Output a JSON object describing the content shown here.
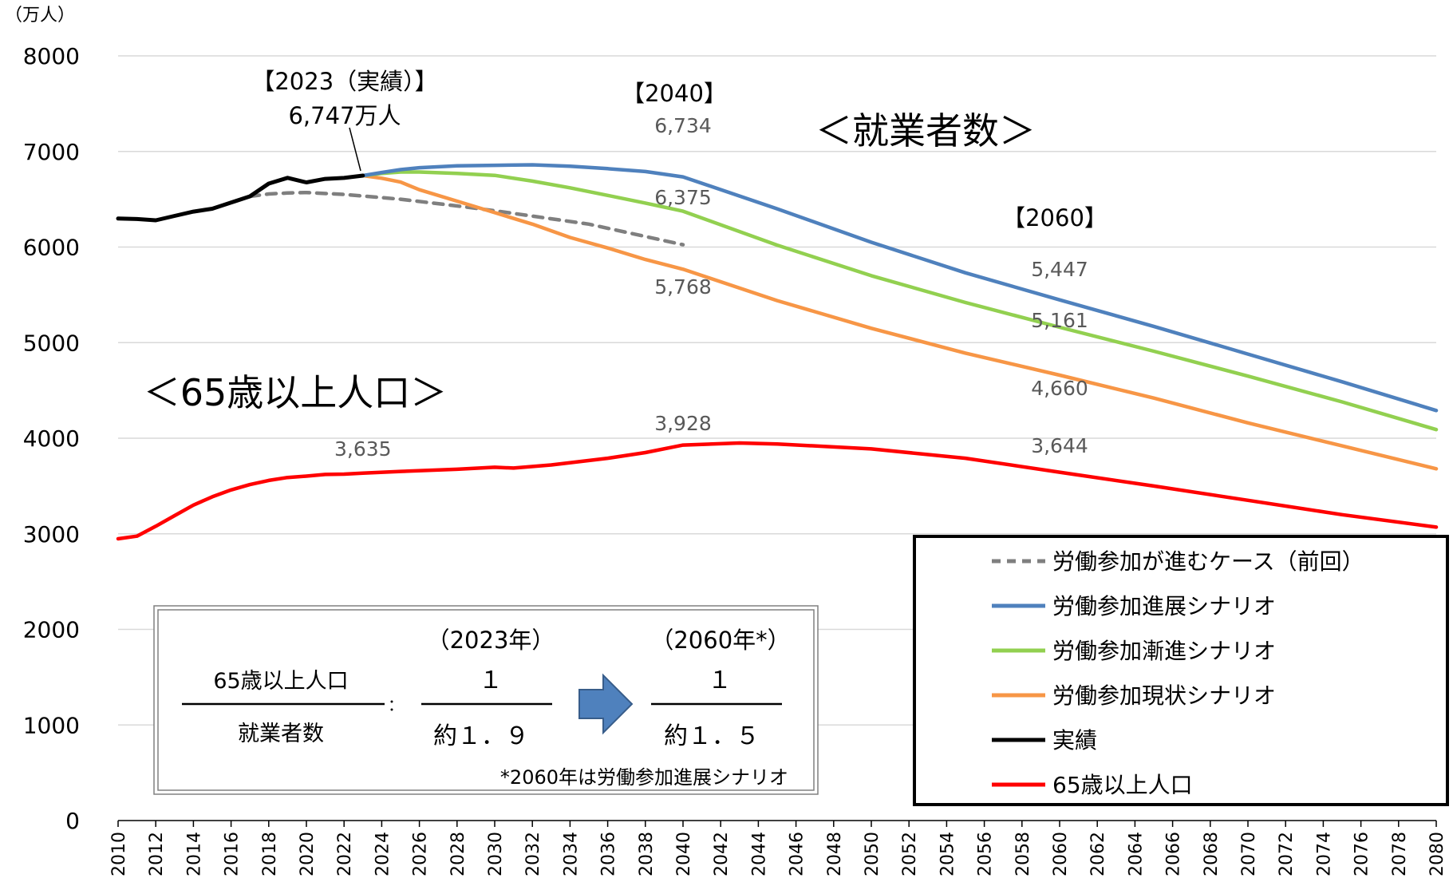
{
  "chart_data": {
    "type": "line",
    "unit_label": "（万人）",
    "ylim": [
      0,
      8000
    ],
    "yticks": [
      0,
      1000,
      2000,
      3000,
      4000,
      5000,
      6000,
      7000,
      8000
    ],
    "xlim": [
      2010,
      2080
    ],
    "xticks": [
      2010,
      2012,
      2014,
      2016,
      2018,
      2020,
      2022,
      2024,
      2026,
      2028,
      2030,
      2032,
      2034,
      2036,
      2038,
      2040,
      2042,
      2044,
      2046,
      2048,
      2050,
      2052,
      2054,
      2056,
      2058,
      2060,
      2062,
      2064,
      2066,
      2068,
      2070,
      2072,
      2074,
      2076,
      2078,
      2080
    ],
    "grid": true,
    "legend_position": "bottom-right",
    "series": [
      {
        "name": "労働参加が進むケース（前回）",
        "color": "#7f7f7f",
        "dash": true,
        "x": [
          2017,
          2018,
          2019,
          2020,
          2022,
          2025,
          2028,
          2030,
          2035,
          2040
        ],
        "y": [
          6530,
          6555,
          6565,
          6570,
          6550,
          6500,
          6430,
          6380,
          6240,
          6024
        ]
      },
      {
        "name": "労働参加進展シナリオ",
        "color": "#4f81bd",
        "dash": false,
        "x": [
          2023,
          2024,
          2025,
          2026,
          2028,
          2030,
          2032,
          2034,
          2036,
          2038,
          2040,
          2045,
          2050,
          2055,
          2060,
          2065,
          2070,
          2075,
          2080
        ],
        "y": [
          6747,
          6780,
          6810,
          6830,
          6850,
          6855,
          6860,
          6845,
          6820,
          6790,
          6734,
          6400,
          6050,
          5730,
          5447,
          5170,
          4880,
          4590,
          4290
        ]
      },
      {
        "name": "労働参加漸進シナリオ",
        "color": "#92d050",
        "dash": false,
        "x": [
          2023,
          2024,
          2025,
          2026,
          2028,
          2030,
          2032,
          2034,
          2036,
          2038,
          2040,
          2045,
          2050,
          2055,
          2060,
          2065,
          2070,
          2075,
          2080
        ],
        "y": [
          6747,
          6770,
          6785,
          6785,
          6770,
          6750,
          6690,
          6620,
          6540,
          6460,
          6375,
          6020,
          5700,
          5420,
          5161,
          4910,
          4650,
          4380,
          4090
        ]
      },
      {
        "name": "労働参加現状シナリオ",
        "color": "#f79646",
        "dash": false,
        "x": [
          2023,
          2024,
          2025,
          2026,
          2028,
          2030,
          2032,
          2034,
          2036,
          2038,
          2040,
          2045,
          2050,
          2055,
          2060,
          2065,
          2070,
          2075,
          2080
        ],
        "y": [
          6747,
          6720,
          6680,
          6600,
          6480,
          6360,
          6240,
          6100,
          5990,
          5870,
          5768,
          5440,
          5150,
          4890,
          4660,
          4420,
          4160,
          3920,
          3680
        ]
      },
      {
        "name": "実績",
        "color": "#000000",
        "dash": false,
        "x": [
          2010,
          2011,
          2012,
          2013,
          2014,
          2015,
          2016,
          2017,
          2018,
          2019,
          2020,
          2021,
          2022,
          2023
        ],
        "y": [
          6298,
          6293,
          6280,
          6326,
          6371,
          6401,
          6465,
          6530,
          6664,
          6724,
          6676,
          6713,
          6723,
          6747
        ]
      },
      {
        "name": "65歳以上人口",
        "color": "#ff0000",
        "dash": false,
        "x": [
          2010,
          2011,
          2012,
          2013,
          2014,
          2015,
          2016,
          2017,
          2018,
          2019,
          2020,
          2021,
          2022,
          2023,
          2025,
          2028,
          2030,
          2031,
          2033,
          2036,
          2038,
          2040,
          2043,
          2045,
          2050,
          2055,
          2060,
          2065,
          2070,
          2075,
          2080
        ],
        "y": [
          2948,
          2975,
          3079,
          3190,
          3300,
          3387,
          3459,
          3515,
          3558,
          3589,
          3603,
          3621,
          3624,
          3635,
          3653,
          3675,
          3696,
          3688,
          3720,
          3790,
          3850,
          3928,
          3950,
          3940,
          3888,
          3790,
          3644,
          3500,
          3350,
          3200,
          3070
        ]
      }
    ],
    "data_labels": [
      {
        "text": "6,734",
        "x": 2040
      },
      {
        "text": "6,375",
        "x": 2040
      },
      {
        "text": "5,768",
        "x": 2040
      },
      {
        "text": "3,928",
        "x": 2040
      },
      {
        "text": "5,447",
        "x": 2060
      },
      {
        "text": "5,161",
        "x": 2060
      },
      {
        "text": "4,660",
        "x": 2060
      },
      {
        "text": "3,644",
        "x": 2060
      },
      {
        "text": "3,635",
        "x": 2023
      }
    ],
    "annotations": {
      "actual_year": "【2023（実績）】",
      "actual_value": "6,747万人",
      "year_2040": "【2040】",
      "year_2060": "【2060】",
      "employed_title": "＜就業者数＞",
      "elderly_title": "＜65歳以上人口＞"
    },
    "ratio_box": {
      "numerator_label": "65歳以上人口",
      "denominator_label": "就業者数",
      "colon": "：",
      "year_a": "（2023年）",
      "num_a": "１",
      "den_a": "約１．９",
      "year_b": "（2060年*）",
      "num_b": "１",
      "den_b": "約１．５",
      "note": "*2060年は労働参加進展シナリオ"
    }
  }
}
